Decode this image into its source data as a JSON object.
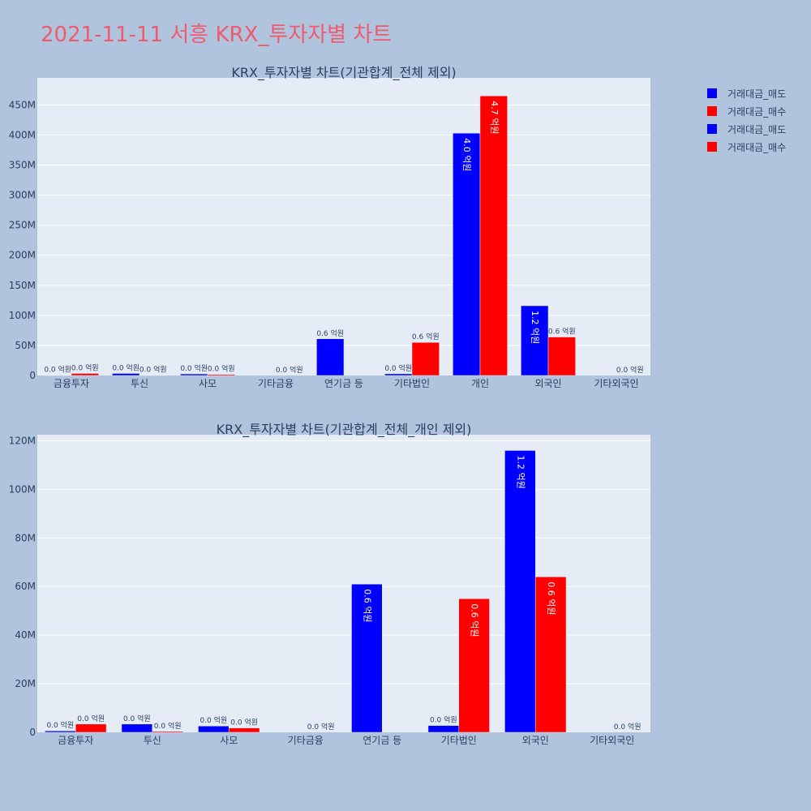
{
  "page_title": "2021-11-11 서흥 KRX_투자자별 차트",
  "legend": [
    {
      "label": "거래대금_매도",
      "color": "#0000FF"
    },
    {
      "label": "거래대금_매수",
      "color": "#FF0000"
    },
    {
      "label": "거래대금_매도",
      "color": "#0000FF"
    },
    {
      "label": "거래대금_매수",
      "color": "#FF0000"
    }
  ],
  "chart_data": [
    {
      "type": "bar",
      "title": "KRX_투자자별 차트(기관합계_전체 제외)",
      "categories": [
        "금융투자",
        "투신",
        "사모",
        "기타금융",
        "연기금 등",
        "기타법인",
        "개인",
        "외국인",
        "기타외국인"
      ],
      "ylim": [
        0,
        495000000
      ],
      "yticks": [
        0,
        50000000,
        100000000,
        150000000,
        200000000,
        250000000,
        300000000,
        350000000,
        400000000,
        450000000
      ],
      "ytick_labels": [
        "0",
        "50M",
        "100M",
        "150M",
        "200M",
        "250M",
        "300M",
        "350M",
        "400M",
        "450M"
      ],
      "series": [
        {
          "name": "거래대금_매도",
          "color": "#0000FF",
          "values": [
            600000,
            3400000,
            2600000,
            0,
            61000000,
            2800000,
            403000000,
            116000000,
            0
          ],
          "labels": [
            "0.0 억원",
            "0.0 억원",
            "0.0 억원",
            "",
            "0.6 억원",
            "0.0 억원",
            "4.0 억원",
            "1.2 억원",
            ""
          ]
        },
        {
          "name": "거래대금_매수",
          "color": "#FF0000",
          "values": [
            3400000,
            400000,
            1800000,
            0,
            0,
            55000000,
            465000000,
            64000000,
            0
          ],
          "labels": [
            "0.0 억원",
            "0.0 억원",
            "0.0 억원",
            "0.0 억원",
            "",
            "0.6 억원",
            "4.7 억원",
            "0.6 억원",
            "0.0 억원"
          ]
        }
      ]
    },
    {
      "type": "bar",
      "title": "KRX_투자자별 차트(기관합계_전체_개인 제외)",
      "categories": [
        "금융투자",
        "투신",
        "사모",
        "기타금융",
        "연기금 등",
        "기타법인",
        "외국인",
        "기타외국인"
      ],
      "ylim": [
        0,
        122500000
      ],
      "yticks": [
        0,
        20000000,
        40000000,
        60000000,
        80000000,
        100000000,
        120000000
      ],
      "ytick_labels": [
        "0",
        "20M",
        "40M",
        "60M",
        "80M",
        "100M",
        "120M"
      ],
      "series": [
        {
          "name": "거래대금_매도",
          "color": "#0000FF",
          "values": [
            600000,
            3400000,
            2600000,
            0,
            61000000,
            2800000,
            116000000,
            0
          ],
          "labels": [
            "0.0 억원",
            "0.0 억원",
            "0.0 억원",
            "",
            "0.6 억원",
            "0.0 억원",
            "1.2 억원",
            ""
          ]
        },
        {
          "name": "거래대금_매수",
          "color": "#FF0000",
          "values": [
            3400000,
            400000,
            1800000,
            0,
            0,
            55000000,
            64000000,
            0
          ],
          "labels": [
            "0.0 억원",
            "0.0 억원",
            "0.0 억원",
            "0.0 억원",
            "",
            "0.6 억원",
            "0.6 억원",
            "0.0 억원"
          ]
        }
      ]
    }
  ]
}
